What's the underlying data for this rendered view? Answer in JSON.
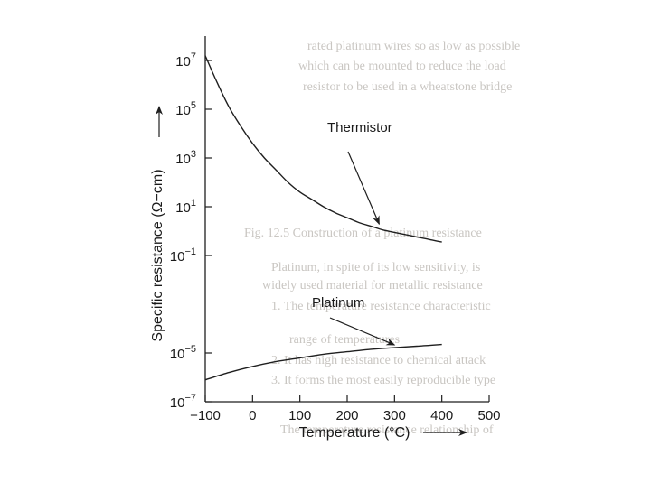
{
  "chart_data": {
    "type": "line",
    "xlabel": "Temperature (°C)",
    "ylabel": "Specific resistance (Ω−cm)",
    "y_scale": "log",
    "xlim": [
      -100,
      500
    ],
    "ylim_exponent": [
      -7,
      8
    ],
    "x_ticks": [
      "−100",
      "0",
      "100",
      "200",
      "300",
      "400",
      "500"
    ],
    "x_tick_values": [
      -100,
      0,
      100,
      200,
      300,
      400,
      500
    ],
    "y_ticks": [
      {
        "base": "10",
        "exp": "7",
        "value_exp": 7
      },
      {
        "base": "10",
        "exp": "5",
        "value_exp": 5
      },
      {
        "base": "10",
        "exp": "3",
        "value_exp": 3
      },
      {
        "base": "10",
        "exp": "1",
        "value_exp": 1
      },
      {
        "base": "10",
        "exp": "−1",
        "value_exp": -1
      },
      {
        "base": "10",
        "exp": "−5",
        "value_exp": -5
      },
      {
        "base": "10",
        "exp": "−7",
        "value_exp": -7
      }
    ],
    "grid": false,
    "series": [
      {
        "name": "Thermistor",
        "color": "#1f1f1f",
        "x": [
          -100,
          -75,
          -50,
          -25,
          0,
          25,
          50,
          75,
          100,
          125,
          150,
          175,
          200,
          225,
          250,
          275,
          300,
          325,
          350,
          375,
          400
        ],
        "log10_y": [
          7.2,
          6.1,
          5.1,
          4.3,
          3.6,
          3.0,
          2.5,
          2.0,
          1.6,
          1.3,
          1.0,
          0.75,
          0.55,
          0.35,
          0.2,
          0.05,
          -0.05,
          -0.15,
          -0.25,
          -0.35,
          -0.45
        ]
      },
      {
        "name": "Platinum",
        "color": "#1f1f1f",
        "x": [
          -100,
          -50,
          0,
          50,
          100,
          150,
          200,
          250,
          300,
          350,
          400
        ],
        "log10_y": [
          -6.1,
          -5.8,
          -5.55,
          -5.35,
          -5.2,
          -5.05,
          -4.95,
          -4.85,
          -4.78,
          -4.72,
          -4.65
        ]
      }
    ],
    "annotations": [
      {
        "text": "Thermistor",
        "target_series": 0,
        "target_x": 260
      },
      {
        "text": "Platinum",
        "target_series": 1,
        "target_x": 300
      }
    ]
  },
  "background_bleed": [
    "rated platinum wires so as low as possible",
    "which can be mounted to reduce the load",
    "resistor to be used in a wheatstone bridge",
    "Fig. 12.5   Construction of a platinum resistance",
    "Platinum, in spite of its low sensitivity, is",
    "widely used material for metallic resistance",
    "1.  The temperature resistance characteristic",
    "range of temperatures",
    "2.  It has high resistance to chemical attack",
    "3.  It forms the most easily reproducible type",
    "The temperature resistance relationship of"
  ],
  "colors": {
    "ink": "#1f1f1f",
    "bleed": "#c9c6c2",
    "background": "#ffffff"
  }
}
